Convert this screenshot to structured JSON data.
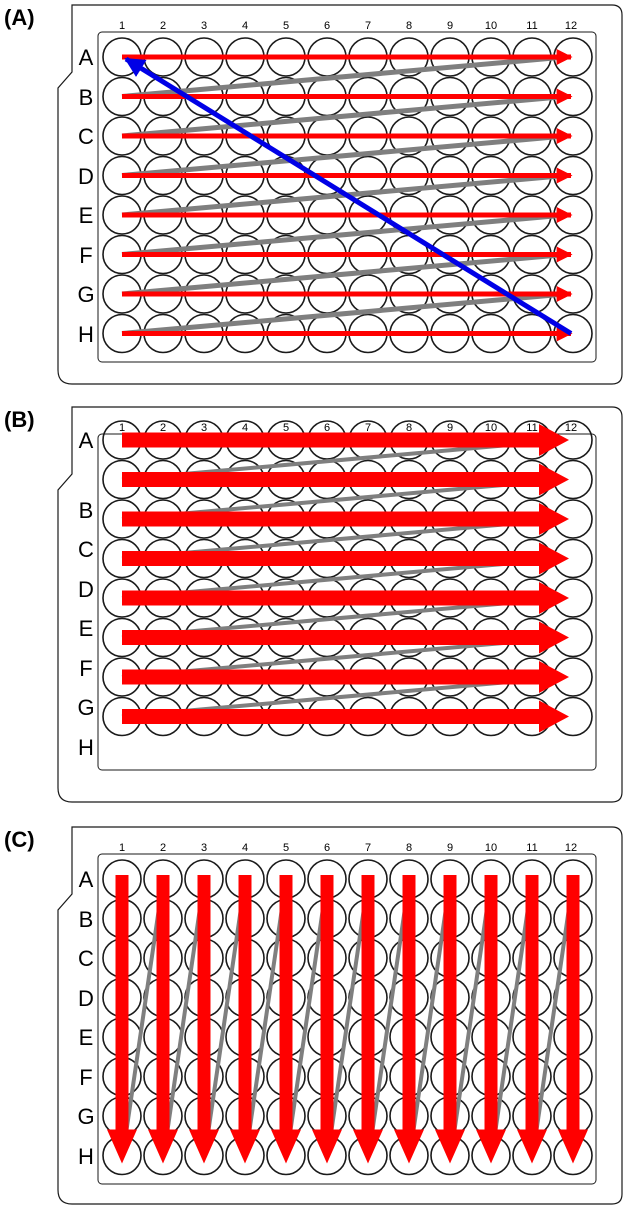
{
  "column_labels": [
    "1",
    "2",
    "3",
    "4",
    "5",
    "6",
    "7",
    "8",
    "9",
    "10",
    "11",
    "12"
  ],
  "row_labels": [
    "A",
    "B",
    "C",
    "D",
    "E",
    "F",
    "G",
    "H"
  ],
  "colors": {
    "red_arrow": "#ff0000",
    "gray_return": "#7f7f7f",
    "blue_diagonal": "#0000e6",
    "outline": "#1a1a1a"
  },
  "panels": [
    {
      "label": "(A)",
      "pattern": "row-wise thin arrows with gray return lines and blue diagonal from H1 to A1",
      "arrows": "thin"
    },
    {
      "label": "(B)",
      "pattern": "row-wise thick arrows with gray return lines",
      "arrows": "thick"
    },
    {
      "label": "(C)",
      "pattern": "column-wise thick arrows with gray return lines",
      "arrows": "column"
    }
  ]
}
